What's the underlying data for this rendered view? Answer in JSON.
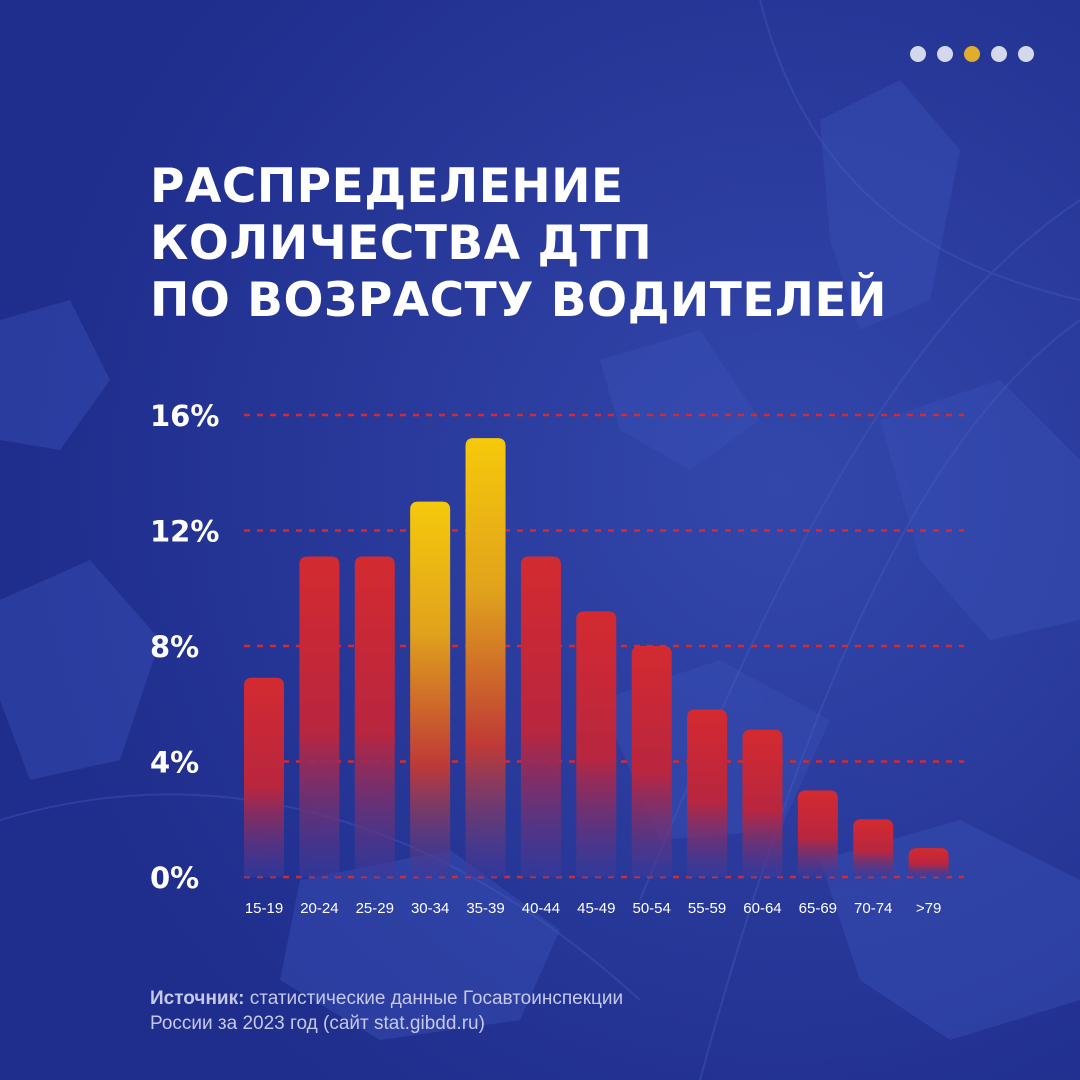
{
  "pagination": {
    "dots": [
      {
        "color": "#d4d8ec"
      },
      {
        "color": "#d4d8ec"
      },
      {
        "color": "#e0ad2e",
        "active": true
      },
      {
        "color": "#d4d8ec"
      },
      {
        "color": "#d4d8ec"
      }
    ]
  },
  "header": {
    "title_lines": [
      "РАСПРЕДЕЛЕНИЕ",
      "КОЛИЧЕСТВА ДТП",
      "ПО ВОЗРАСТУ ВОДИТЕЛЕЙ"
    ]
  },
  "chart_data": {
    "type": "bar",
    "categories": [
      "15-19",
      "20-24",
      "25-29",
      "30-34",
      "35-39",
      "40-44",
      "45-49",
      "50-54",
      "55-59",
      "60-64",
      "65-69",
      "70-74",
      ">79"
    ],
    "values": [
      6.9,
      11.1,
      11.1,
      13.0,
      15.2,
      11.1,
      9.2,
      8.0,
      5.8,
      5.1,
      3.0,
      2.0,
      1.0
    ],
    "highlighted": [
      "30-34",
      "35-39"
    ],
    "yticks": [
      0,
      4,
      8,
      12,
      16
    ],
    "ytick_labels": [
      "0%",
      "4%",
      "8%",
      "12%",
      "16%"
    ],
    "ylim": [
      0,
      16
    ],
    "grid": true,
    "title": "",
    "xlabel": "",
    "ylabel": "",
    "colors": {
      "bar": "#d42a30",
      "bar_highlight": "#f6c90b",
      "grid": "#d42a30"
    }
  },
  "footer": {
    "source_label": "Источник:",
    "source_text_line1": "статистические данные Госавтоинспекции",
    "source_text_line2": "России за 2023 год (сайт stat.gibdd.ru)"
  },
  "theme": {
    "background": "#24349a"
  }
}
